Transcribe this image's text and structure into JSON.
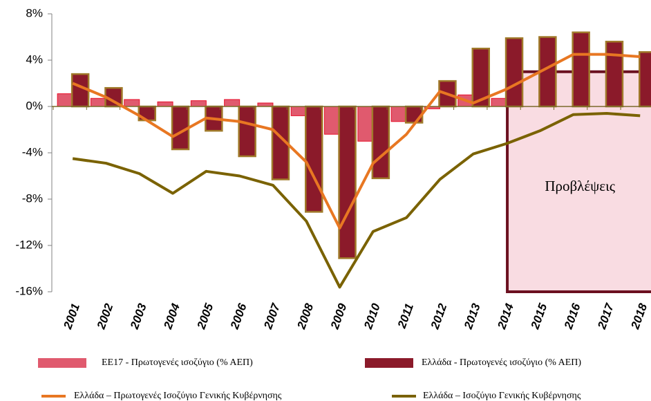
{
  "chart_data": {
    "type": "bar_line",
    "categories": [
      "2001",
      "2002",
      "2003",
      "2004",
      "2005",
      "2006",
      "2007",
      "2008",
      "2009",
      "2010",
      "2011",
      "2012",
      "2013",
      "2014",
      "2015",
      "2016",
      "2017",
      "2018"
    ],
    "series": [
      {
        "name": "ΕΕ17 -  Πρωτογενές ισοζύγιο (% ΑΕΠ)",
        "kind": "bar",
        "color": "#e05a6e",
        "values": [
          1.1,
          0.7,
          0.6,
          0.4,
          0.5,
          0.6,
          0.3,
          -0.8,
          -2.4,
          -3.0,
          -1.3,
          -0.2,
          1.0,
          0.7,
          null,
          null,
          null,
          null
        ]
      },
      {
        "name": "Ελλάδα -  Πρωτογενές ισοζύγιο (% ΑΕΠ)",
        "kind": "bar",
        "color": "#8b1a2a",
        "values": [
          2.8,
          1.6,
          -1.2,
          -3.7,
          -2.1,
          -4.3,
          -6.3,
          -9.1,
          -13.1,
          -6.2,
          -1.4,
          2.2,
          5.0,
          5.9,
          6.0,
          6.4,
          5.6,
          4.7
        ]
      },
      {
        "name": "Ελλάδα – Πρωτογενές Ισοζύγιο Γενικής Κυβέρνησης",
        "kind": "line",
        "color": "#e87722",
        "values": [
          2.0,
          0.8,
          -0.8,
          -2.6,
          -1.0,
          -1.3,
          -2.0,
          -4.8,
          -10.5,
          -4.9,
          -2.4,
          1.3,
          0.3,
          1.5,
          3.0,
          4.5,
          4.5,
          4.3
        ]
      },
      {
        "name": "Ελλάδα – Ισοζύγιο Γενικής Κυβέρνησης",
        "kind": "line",
        "color": "#7a6200",
        "values": [
          -4.5,
          -4.9,
          -5.8,
          -7.5,
          -5.6,
          -6.0,
          -6.8,
          -9.9,
          -15.6,
          -10.8,
          -9.6,
          -6.3,
          -4.1,
          -3.2,
          -2.1,
          -0.7,
          -0.6,
          -0.8
        ]
      }
    ],
    "ylim": [
      -16,
      8
    ],
    "yticks": [
      {
        "value": -16,
        "label": "-16%"
      },
      {
        "value": -12,
        "label": "-12%"
      },
      {
        "value": -8,
        "label": "-8%"
      },
      {
        "value": -4,
        "label": "-4%"
      },
      {
        "value": 0,
        "label": "0%"
      },
      {
        "value": 4,
        "label": "4%"
      },
      {
        "value": 8,
        "label": "8%"
      }
    ],
    "annotation": "Προβλέψεις"
  }
}
